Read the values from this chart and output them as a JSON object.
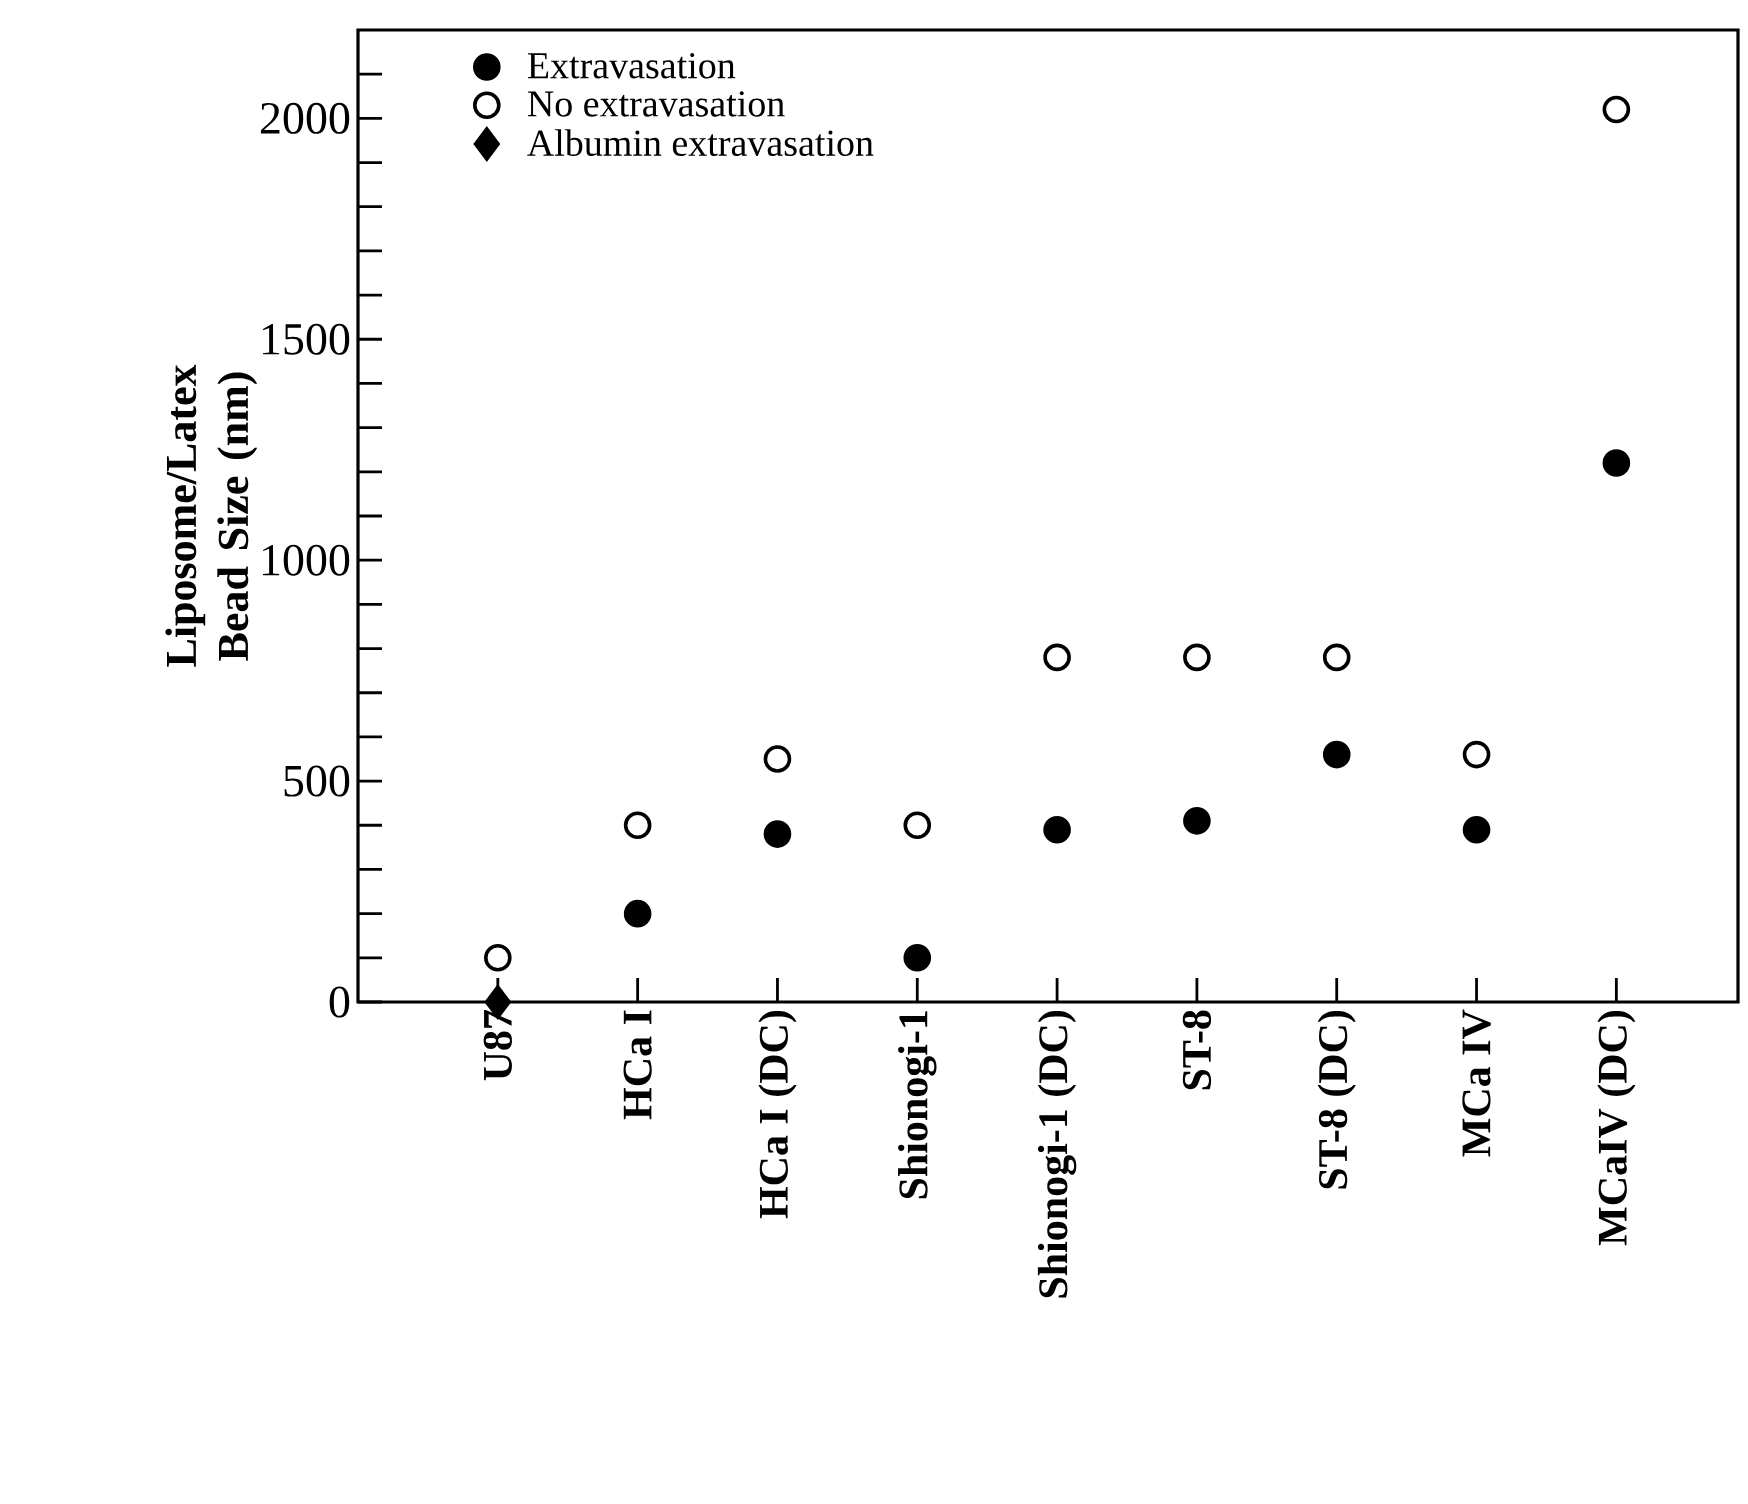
{
  "chart_data": {
    "type": "scatter",
    "ylabel": "Liposome/Latex Bead Size (nm)",
    "categories": [
      "U87",
      "HCa I",
      "HCa I (DC)",
      "Shionogi-1",
      "Shionogi-1 (DC)",
      "ST-8",
      "ST-8 (DC)",
      "MCa IV",
      "MCaIV (DC)"
    ],
    "series": [
      {
        "name": "Extravasation",
        "color": "#000000",
        "marker": "circle",
        "values": [
          null,
          200,
          380,
          100,
          390,
          410,
          560,
          390,
          1220
        ]
      },
      {
        "name": "No extravasation",
        "color": "#000000",
        "marker": "open circle",
        "values": [
          100,
          400,
          550,
          400,
          780,
          780,
          780,
          560,
          2020
        ]
      },
      {
        "name": "Albumin extravasation",
        "color": "#000000",
        "marker": "diamond",
        "values": [
          0,
          null,
          null,
          null,
          null,
          null,
          null,
          null,
          null
        ]
      }
    ],
    "ylim": [
      0,
      2200
    ],
    "yticks": [
      0,
      {
        "value": 100,
        "label": null
      },
      {
        "value": 200,
        "label": null
      },
      {
        "value": 300,
        "label": null
      },
      {
        "value": 400,
        "label": null
      },
      500,
      {
        "value": 600,
        "label": null
      },
      {
        "value": 700,
        "label": null
      },
      {
        "value": 800,
        "label": null
      },
      {
        "value": 900,
        "label": null
      },
      1000,
      {
        "value": 1100,
        "label": null
      },
      {
        "value": 1200,
        "label": null
      },
      {
        "value": 1300,
        "label": null
      },
      {
        "value": 1400,
        "label": null
      },
      1500,
      {
        "value": 1600,
        "label": null
      },
      {
        "value": 1700,
        "label": null
      },
      {
        "value": 1800,
        "label": null
      },
      {
        "value": 1900,
        "label": null
      },
      2000,
      {
        "value": 2100,
        "label": null
      }
    ],
    "grid": false,
    "legend": "top left"
  }
}
